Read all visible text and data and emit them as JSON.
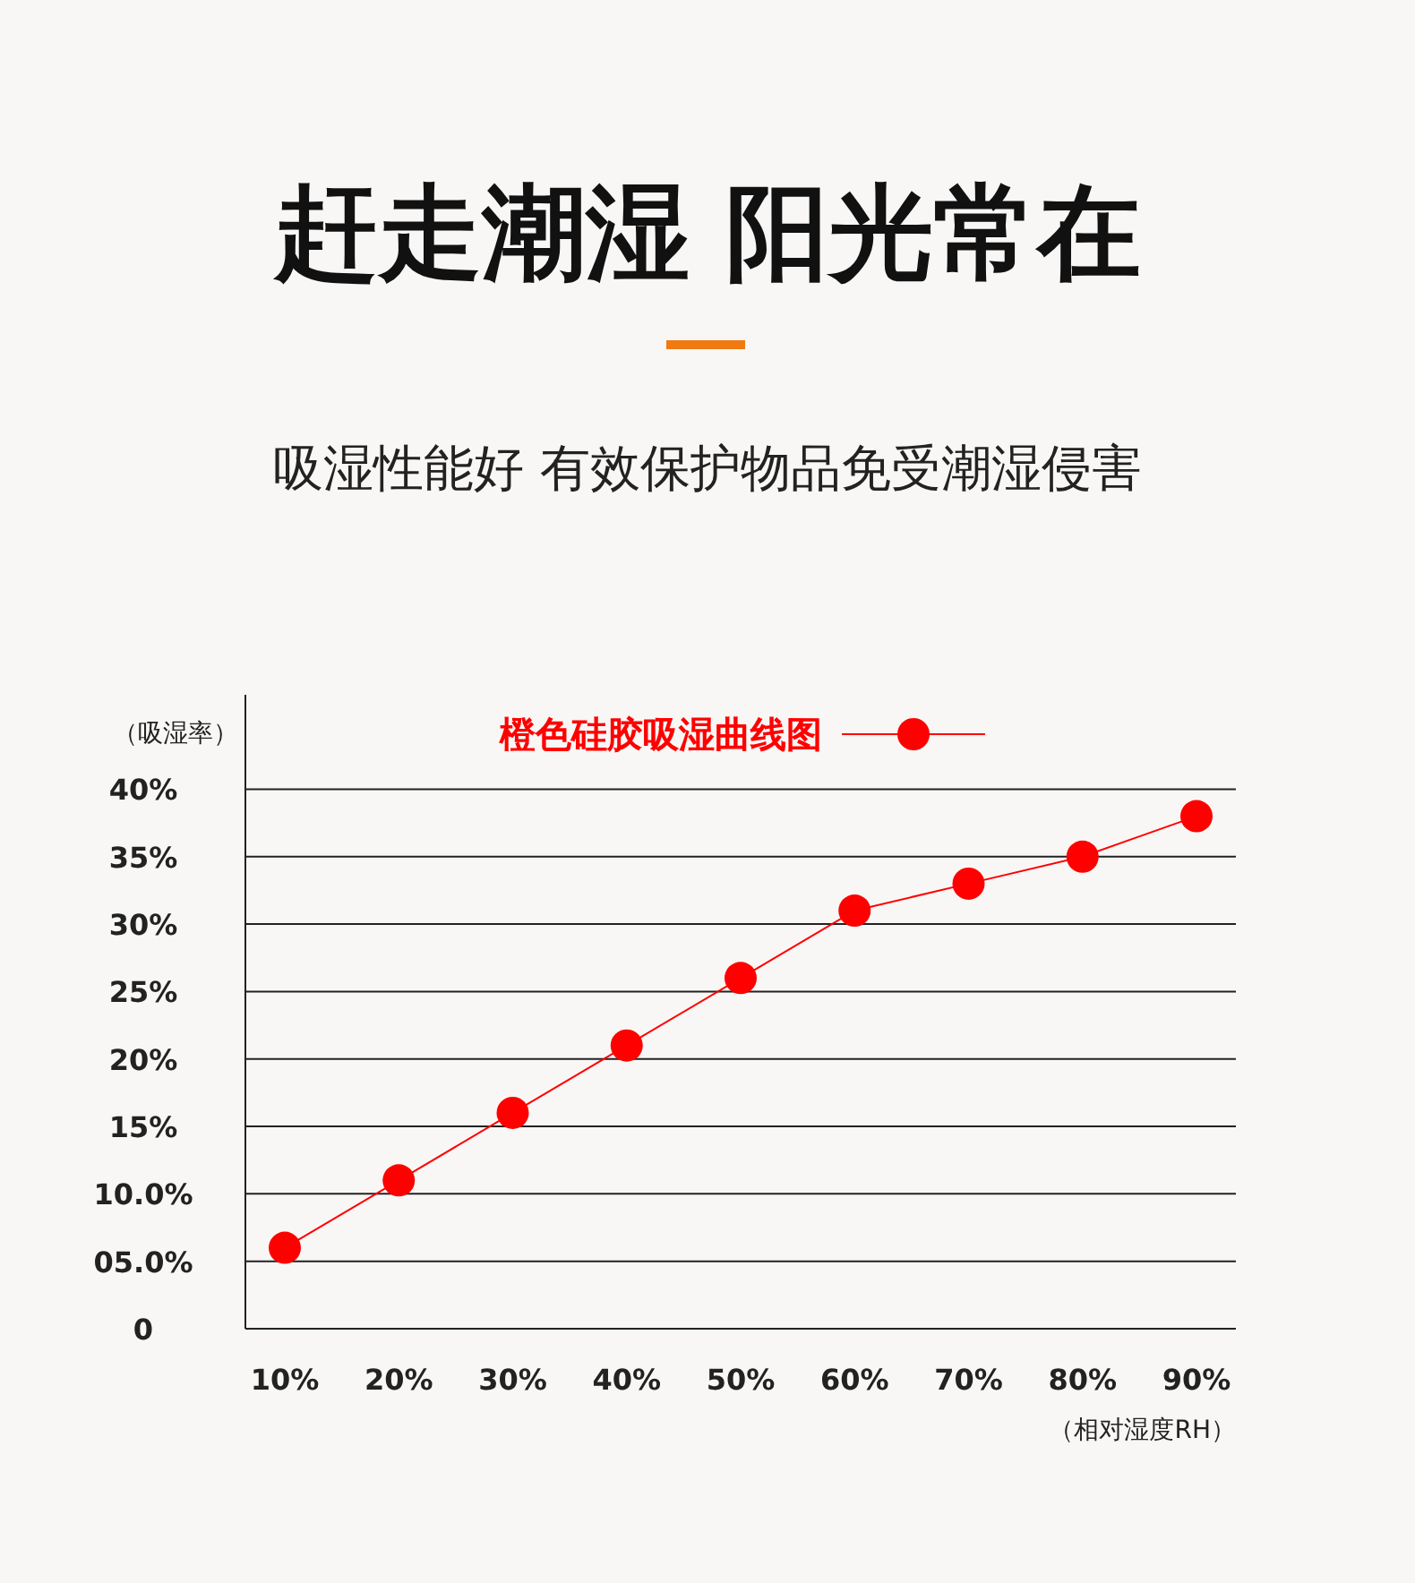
{
  "chart_data": {
    "type": "line",
    "title": "赶走潮湿  阳光常在",
    "subtitle": "吸湿性能好 有效保护物品免受潮湿侵害",
    "xlabel": "（相对湿度RH）",
    "ylabel": "（吸湿率）",
    "categories": [
      "10%",
      "20%",
      "30%",
      "40%",
      "50%",
      "60%",
      "70%",
      "80%",
      "90%"
    ],
    "series": [
      {
        "name": "橙色硅胶吸湿曲线图",
        "color": "#ff0000",
        "values": [
          6,
          11,
          16,
          21,
          26,
          31,
          33,
          35,
          38
        ]
      }
    ],
    "ylim": [
      0,
      47
    ],
    "yticks": [
      {
        "value": 0,
        "label": "0"
      },
      {
        "value": 5,
        "label": "05.0%"
      },
      {
        "value": 10,
        "label": "10.0%"
      },
      {
        "value": 15,
        "label": "15%"
      },
      {
        "value": 20,
        "label": "20%"
      },
      {
        "value": 25,
        "label": "25%"
      },
      {
        "value": 30,
        "label": "30%"
      },
      {
        "value": 35,
        "label": "35%"
      },
      {
        "value": 40,
        "label": "40%"
      }
    ],
    "grid": "y",
    "legend": "top",
    "marker": "circle",
    "line_style": "solid"
  }
}
